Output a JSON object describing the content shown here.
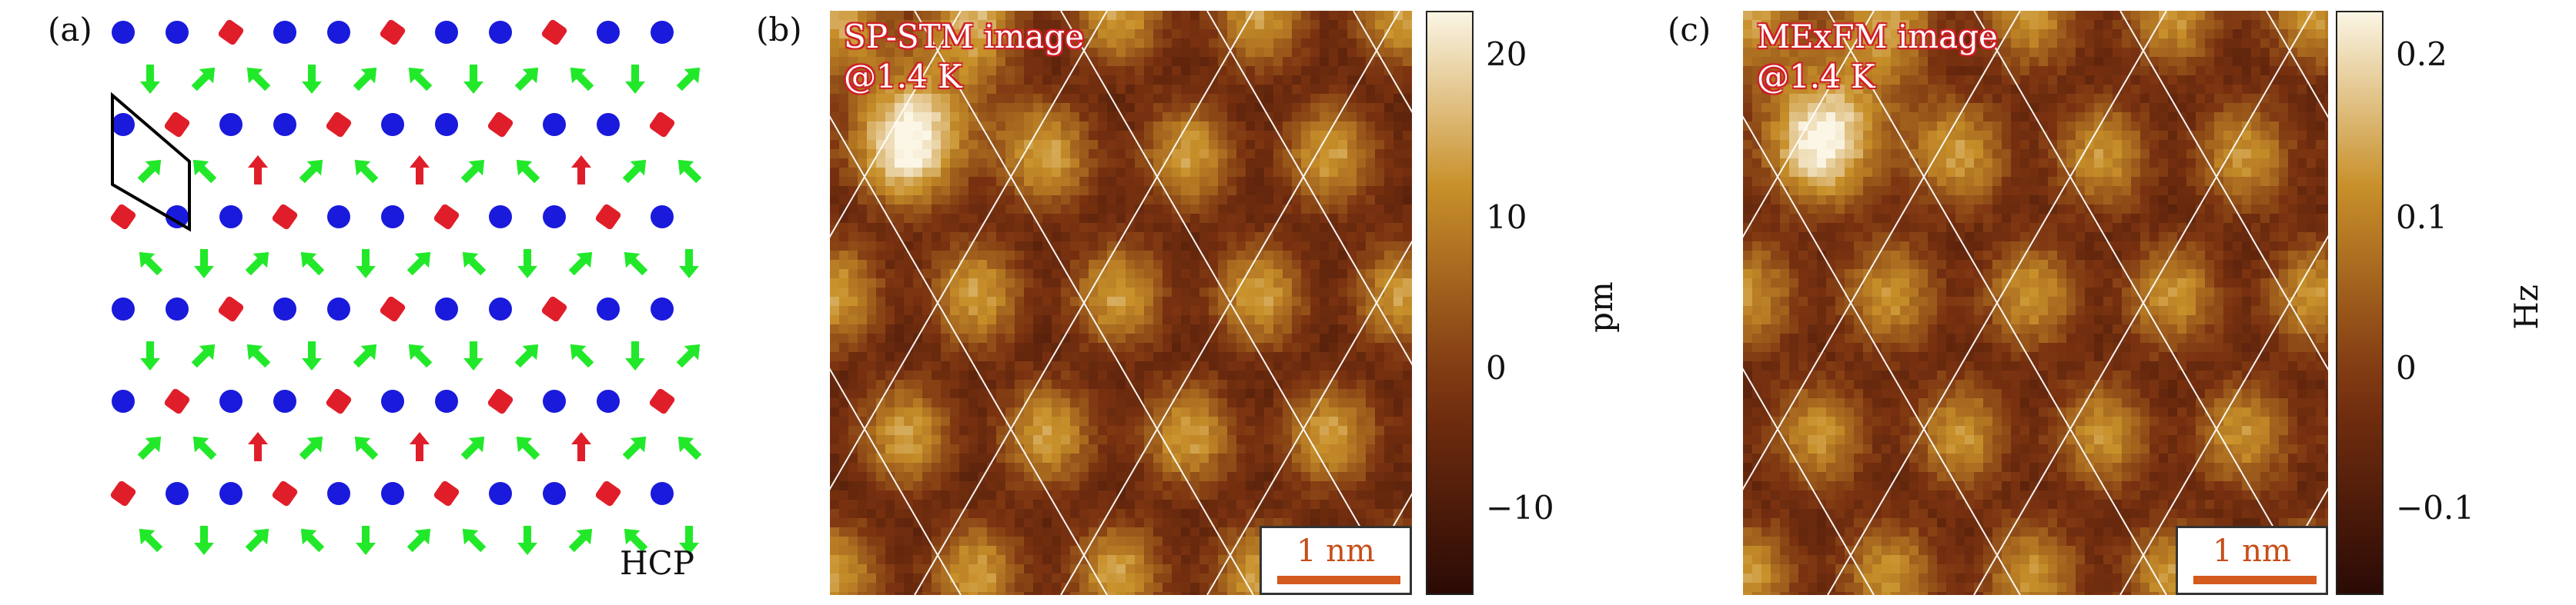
{
  "panels": {
    "a": {
      "label": "(a)",
      "site_label": "HCP",
      "colors": {
        "blue_atom": "#1a1adc",
        "red_spin": "#e01e2a",
        "green_spin": "#22e82a",
        "cell_outline": "#000000"
      }
    },
    "b": {
      "label": "(b)",
      "title_line1": "SP-STM image",
      "title_line2": "@1.4 K",
      "scale_text": "1 nm",
      "colorbar": {
        "unit": "pm",
        "ticks": [
          "20",
          "10",
          "0",
          "−10"
        ]
      }
    },
    "c": {
      "label": "(c)",
      "title_line1": "MExFM image",
      "title_line2": "@1.4 K",
      "scale_text": "1 nm",
      "colorbar": {
        "unit": "Hz",
        "ticks": [
          "0.2",
          "0.1",
          "0",
          "−0.1"
        ]
      }
    }
  },
  "colormap": {
    "dark": "#2a0a05",
    "mid": "#7a3210",
    "bright": "#c8902a",
    "white": "#fbf6e6",
    "title_outline": "#d0202a",
    "scalebar": "#d45a1d"
  }
}
